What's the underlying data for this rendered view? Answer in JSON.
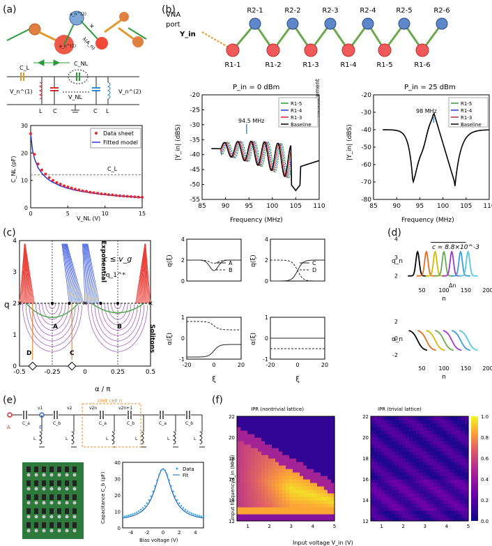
{
  "panels": {
    "a": "(a)",
    "b": "(b)",
    "c": "(c)",
    "d": "(d)",
    "e": "(e)",
    "f": "(f)"
  },
  "a": {
    "orbital": {
      "an1": "a_n^(1)",
      "an2": "a_n^(2)",
      "lambda": "λ(A_n)",
      "plus": "+"
    },
    "circuit": {
      "CL": "C_L",
      "CNL": "C_NL",
      "V1": "V_n^(1)",
      "V2": "V_n^(2)",
      "VNL": "V_NL",
      "L1": "L",
      "C1": "C",
      "C2": "C",
      "L2": "L"
    },
    "chart_data": {
      "type": "line",
      "title": "",
      "xlabel": "V_NL (V)",
      "ylabel": "C_NL (pF)",
      "xlim": [
        0,
        15
      ],
      "ylim": [
        0,
        30
      ],
      "xticks": [
        0,
        5,
        10,
        15
      ],
      "yticks": [
        0,
        10,
        20,
        30
      ],
      "hline": {
        "y": 12,
        "label": "C_L"
      },
      "series": [
        {
          "name": "Data sheet",
          "kind": "scatter",
          "color": "#e8262b",
          "x": [
            0,
            0.5,
            1,
            1.5,
            2,
            2.5,
            3,
            3.5,
            4,
            4.5,
            5,
            5.5,
            6,
            6.5,
            7,
            7.5,
            8,
            8.5,
            9,
            9.5,
            10,
            10.5,
            11,
            11.5,
            12,
            12.5,
            13,
            13.5,
            14,
            14.5,
            15
          ],
          "y": [
            27,
            19.5,
            16,
            13.8,
            12.3,
            11,
            10,
            9.2,
            8.6,
            8,
            7.6,
            7.2,
            6.8,
            6.5,
            6.2,
            6,
            5.7,
            5.5,
            5.3,
            5.1,
            5,
            4.8,
            4.7,
            4.5,
            4.4,
            4.3,
            4.2,
            4.1,
            4,
            3.9,
            3.8
          ]
        },
        {
          "name": "Fitted model",
          "kind": "line",
          "color": "#2a34d6",
          "x": [
            0,
            0.25,
            0.5,
            1,
            1.5,
            2,
            2.5,
            3,
            4,
            5,
            6,
            7,
            8,
            9,
            10,
            11,
            12,
            13,
            14,
            15
          ],
          "y": [
            27,
            21,
            18,
            14.6,
            12.6,
            11.2,
            10.1,
            9.3,
            8,
            7.1,
            6.4,
            5.9,
            5.5,
            5.1,
            4.8,
            4.5,
            4.3,
            4.1,
            3.9,
            3.75
          ]
        }
      ]
    }
  },
  "b": {
    "vna": {
      "title1": "VNA",
      "title2": "port",
      "yin": "Y_in"
    },
    "resonators_top": [
      "R2-1",
      "R2-2",
      "R2-3",
      "R2-4",
      "R2-5",
      "R2-6"
    ],
    "resonators_bottom": [
      "R1-1",
      "R1-2",
      "R1-3",
      "R1-4",
      "R1-5",
      "R1-6"
    ],
    "measurement": "Measurement",
    "chart_data": [
      {
        "type": "line",
        "title": "P_in = 0 dBm",
        "xlabel": "Frequency (MHz)",
        "ylabel": "|Y_in| (dBS)",
        "xlim": [
          85,
          110
        ],
        "ylim": [
          -55,
          -20
        ],
        "xticks": [
          85,
          90,
          95,
          100,
          105,
          110
        ],
        "yticks": [
          -55,
          -50,
          -45,
          -40,
          -35,
          -30,
          -25,
          -20
        ],
        "annotation": {
          "text": "94.5 MHz",
          "x": 94.5
        },
        "series": [
          {
            "name": "R1-5",
            "color": "#2ca02c"
          },
          {
            "name": "R1-4",
            "color": "#1f3fd0"
          },
          {
            "name": "R1-3",
            "color": "#d62728"
          },
          {
            "name": "Baseline",
            "color": "#000000"
          }
        ]
      },
      {
        "type": "line",
        "title": "P_in = 25 dBm",
        "xlabel": "Frequency (MHz)",
        "ylabel": "|Y_in| (dBS)",
        "xlim": [
          85,
          110
        ],
        "ylim": [
          -80,
          -20
        ],
        "xticks": [
          85,
          90,
          95,
          100,
          105,
          110
        ],
        "yticks": [
          -80,
          -70,
          -60,
          -50,
          -40,
          -30,
          -20
        ],
        "annotation": {
          "text": "98 MHz",
          "x": 98
        },
        "series": [
          {
            "name": "R1-5",
            "color": "#2ca02c"
          },
          {
            "name": "R1-4",
            "color": "#1f3fd0"
          },
          {
            "name": "R1-3",
            "color": "#d62728"
          },
          {
            "name": "Baseline",
            "color": "#000000"
          }
        ]
      }
    ]
  },
  "c": {
    "phase": {
      "xlabel": "α / π",
      "ylabel": "q",
      "xticks": [
        "-0.5",
        "-0.25",
        "0",
        "0.25",
        "0.5"
      ],
      "yticks": [
        "0",
        "1",
        "2",
        "3",
        "4"
      ],
      "eq": "c ≤ v_g",
      "qstar": "q_1^*",
      "exp": "Exponential",
      "sol": "Solitons",
      "labels": {
        "A": "A",
        "B": "B",
        "C": "C",
        "D": "D"
      },
      "qmark": "q"
    },
    "chart_data": [
      {
        "type": "line",
        "title": "",
        "xlabel": "",
        "ylabel": "q(ξ)",
        "ylim": [
          0,
          4
        ],
        "yticks": [
          "0",
          "2",
          "4"
        ],
        "series": [
          {
            "name": "A"
          },
          {
            "name": "B"
          }
        ]
      },
      {
        "type": "line",
        "title": "",
        "xlabel": "",
        "ylabel": "q(ξ)",
        "ylim": [
          0,
          4
        ],
        "yticks": [
          "0",
          "2",
          "4"
        ],
        "series": [
          {
            "name": "C"
          },
          {
            "name": "D"
          }
        ]
      },
      {
        "type": "line",
        "title": "",
        "xlabel": "ξ",
        "ylabel": "α(ξ)",
        "xlim": [
          -20,
          20
        ],
        "xticks": [
          "-20",
          "0",
          "20"
        ],
        "yticks": [
          "-1",
          "0",
          "1"
        ]
      },
      {
        "type": "line",
        "title": "",
        "xlabel": "ξ",
        "ylabel": "α(ξ)",
        "xlim": [
          -20,
          20
        ],
        "xticks": [
          "-20",
          "0",
          "20"
        ],
        "yticks": [
          "-1",
          "0",
          "1"
        ]
      }
    ]
  },
  "d": {
    "eq": "c = 8.8×10^-3",
    "dn": "Δn",
    "chart_data": [
      {
        "type": "line",
        "xlabel": "n",
        "ylabel": "q_n",
        "xlim": [
          0,
          200
        ],
        "xticks": [
          "50",
          "100",
          "150",
          "200"
        ],
        "yticks": [
          "2",
          "3",
          "4"
        ],
        "peaks": [
          40,
          60,
          80,
          100,
          118,
          138,
          155
        ],
        "colors": [
          "#000000",
          "#e66b1e",
          "#d4b800",
          "#6aa84f",
          "#9b38c8",
          "#3a9ad8",
          "#55c7e0"
        ]
      },
      {
        "type": "line",
        "xlabel": "n",
        "ylabel": "α_n",
        "xlim": [
          0,
          200
        ],
        "xticks": [
          "50",
          "100",
          "150",
          "200"
        ],
        "yticks": [
          "-2",
          "0",
          "2"
        ]
      }
    ]
  },
  "e": {
    "circuit": {
      "A": "A",
      "B": "B",
      "v1": "v1",
      "v2": "v2",
      "v2n": "v2n",
      "v2n1": "v2n+1",
      "unit": "Unit cell n",
      "Ca": "C_a",
      "Cb": "C_b",
      "L": "L"
    },
    "chart_data": {
      "type": "line",
      "xlabel": "Bias voltage (V)",
      "ylabel": "Capacitance C_b (pF)",
      "xlim": [
        -5,
        5
      ],
      "ylim": [
        0,
        40
      ],
      "xticks": [
        "-4",
        "-2",
        "0",
        "2",
        "4"
      ],
      "yticks": [
        "0",
        "10",
        "20",
        "30",
        "40"
      ],
      "series": [
        {
          "name": "Data",
          "kind": "scatter",
          "color": "#2aa4e8"
        },
        {
          "name": "Fit",
          "kind": "line",
          "color": "#1f5fbf"
        }
      ],
      "peak": {
        "x": 0,
        "y": 36
      }
    }
  },
  "f": {
    "chart_data": [
      {
        "type": "heatmap",
        "title": "IPR (nontrivial lattice)",
        "xlabel": "Input voltage V_in (V)",
        "ylabel": "Input frequency f_in (MHz)",
        "xlim": [
          0.5,
          5
        ],
        "ylim": [
          12,
          22
        ],
        "xticks": [
          "1",
          "2",
          "3",
          "4",
          "5"
        ],
        "yticks": [
          "12",
          "14",
          "16",
          "18",
          "20",
          "22"
        ]
      },
      {
        "type": "heatmap",
        "title": "IPR (trivial lattice)",
        "xlabel": "Input voltage V_in (V)",
        "ylabel": "",
        "xlim": [
          0.5,
          5
        ],
        "ylim": [
          12,
          22
        ],
        "xticks": [
          "1",
          "2",
          "3",
          "4",
          "5"
        ],
        "yticks": [
          "12",
          "14",
          "16",
          "18",
          "20",
          "22"
        ],
        "colorbar": {
          "ticks": [
            "0.0",
            "0.2",
            "0.4",
            "0.6",
            "0.8",
            "1.0"
          ]
        }
      }
    ]
  }
}
